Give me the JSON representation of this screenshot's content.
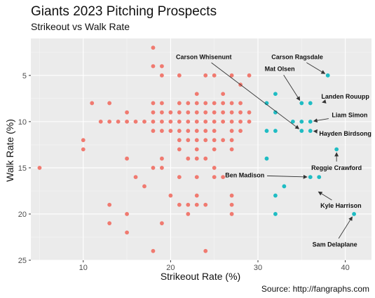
{
  "colors": {
    "panel_bg": "#ebebeb",
    "grid_major": "#ffffff",
    "grid_minor": "#f5f5f5",
    "other_points": "#f07a70",
    "highlight_points": "#1fbcc3",
    "arrow": "#333333"
  },
  "chart_data": {
    "type": "scatter",
    "title": "Giants 2023 Pitching Prospects",
    "subtitle": "Strikeout vs Walk Rate",
    "xlabel": "Strikeout Rate (%)",
    "ylabel": "Walk Rate (%)",
    "caption": "Source: http://fangraphs.com",
    "xlim": [
      4,
      43
    ],
    "ylim": [
      1,
      25
    ],
    "y_reversed": true,
    "grid": true,
    "x_ticks": [
      10,
      20,
      30,
      40
    ],
    "y_ticks": [
      5,
      10,
      15,
      20,
      25
    ],
    "other_points": [
      [
        5,
        15
      ],
      [
        10,
        12
      ],
      [
        10,
        13
      ],
      [
        11,
        8
      ],
      [
        12,
        10
      ],
      [
        13,
        8
      ],
      [
        13,
        10
      ],
      [
        13,
        19
      ],
      [
        13,
        21
      ],
      [
        14,
        10
      ],
      [
        15,
        9
      ],
      [
        15,
        10
      ],
      [
        15,
        14
      ],
      [
        15,
        20
      ],
      [
        15,
        22
      ],
      [
        16,
        10
      ],
      [
        16,
        16
      ],
      [
        17,
        10
      ],
      [
        17,
        17
      ],
      [
        18,
        2
      ],
      [
        18,
        4
      ],
      [
        18,
        8
      ],
      [
        18,
        9
      ],
      [
        18,
        10
      ],
      [
        18,
        11
      ],
      [
        18,
        15
      ],
      [
        18,
        24
      ],
      [
        19,
        4
      ],
      [
        19,
        5
      ],
      [
        19,
        8
      ],
      [
        19,
        9
      ],
      [
        19,
        10
      ],
      [
        19,
        11
      ],
      [
        19,
        14
      ],
      [
        19,
        15
      ],
      [
        19,
        21
      ],
      [
        20,
        9
      ],
      [
        20,
        10
      ],
      [
        20,
        11
      ],
      [
        20,
        18
      ],
      [
        21,
        5
      ],
      [
        21,
        8
      ],
      [
        21,
        9
      ],
      [
        21,
        10
      ],
      [
        21,
        11
      ],
      [
        21,
        12
      ],
      [
        21,
        13
      ],
      [
        21,
        16
      ],
      [
        21,
        19
      ],
      [
        22,
        8
      ],
      [
        22,
        9
      ],
      [
        22,
        10
      ],
      [
        22,
        11
      ],
      [
        22,
        12
      ],
      [
        22,
        14
      ],
      [
        22,
        19
      ],
      [
        22,
        20
      ],
      [
        23,
        7
      ],
      [
        23,
        8
      ],
      [
        23,
        9
      ],
      [
        23,
        10
      ],
      [
        23,
        11
      ],
      [
        23,
        12
      ],
      [
        23,
        13
      ],
      [
        23,
        14
      ],
      [
        23,
        16
      ],
      [
        23,
        18
      ],
      [
        23,
        19
      ],
      [
        24,
        5
      ],
      [
        24,
        8
      ],
      [
        24,
        9
      ],
      [
        24,
        10
      ],
      [
        24,
        11
      ],
      [
        24,
        12
      ],
      [
        24,
        14
      ],
      [
        24,
        19
      ],
      [
        24,
        24
      ],
      [
        25,
        5
      ],
      [
        25,
        8
      ],
      [
        25,
        9
      ],
      [
        25,
        10
      ],
      [
        25,
        11
      ],
      [
        25,
        12
      ],
      [
        25,
        13
      ],
      [
        25,
        15
      ],
      [
        25,
        16
      ],
      [
        26,
        7
      ],
      [
        26,
        8
      ],
      [
        26,
        9
      ],
      [
        26,
        10
      ],
      [
        26,
        12
      ],
      [
        26,
        16
      ],
      [
        27,
        5
      ],
      [
        27,
        8
      ],
      [
        27,
        9
      ],
      [
        27,
        10
      ],
      [
        27,
        11
      ],
      [
        27,
        12
      ],
      [
        27,
        13
      ],
      [
        27,
        18
      ],
      [
        27,
        19
      ],
      [
        27,
        20
      ],
      [
        28,
        6
      ],
      [
        28,
        8
      ],
      [
        28,
        9
      ],
      [
        28,
        10
      ],
      [
        28,
        11
      ],
      [
        29,
        5
      ],
      [
        29,
        9
      ],
      [
        29,
        10
      ]
    ],
    "highlight_points": [
      [
        31,
        8
      ],
      [
        31,
        11
      ],
      [
        31,
        14
      ],
      [
        32,
        7
      ],
      [
        32,
        9
      ],
      [
        32,
        11
      ],
      [
        32,
        18
      ],
      [
        32,
        20
      ],
      [
        33,
        17
      ],
      [
        34,
        10
      ],
      [
        35,
        8
      ],
      [
        35,
        10
      ],
      [
        35,
        11
      ],
      [
        36,
        8
      ],
      [
        36,
        10
      ],
      [
        36,
        11
      ],
      [
        36,
        16
      ],
      [
        37,
        16
      ],
      [
        38,
        5
      ],
      [
        39,
        13
      ],
      [
        41,
        20
      ]
    ],
    "annotations": [
      {
        "label": "Carson Whisenunt",
        "point": [
          35,
          11
        ],
        "text": [
          23.8,
          3
        ]
      },
      {
        "label": "Carson Ragsdale",
        "point": [
          38,
          5
        ],
        "text": [
          34.5,
          3
        ]
      },
      {
        "label": "Mat Olsen",
        "point": [
          35,
          8
        ],
        "text": [
          32.5,
          4.3
        ]
      },
      {
        "label": "Landen Rouupp",
        "point": [
          37,
          8
        ],
        "text": [
          40,
          7.3
        ]
      },
      {
        "label": "Liam Simon",
        "point": [
          36,
          10
        ],
        "text": [
          40.5,
          9.3
        ]
      },
      {
        "label": "Hayden Birdsong",
        "point": [
          36,
          11
        ],
        "text": [
          40,
          11.3
        ]
      },
      {
        "label": "Reggie Crawford",
        "point": [
          39,
          13
        ],
        "text": [
          39,
          15
        ]
      },
      {
        "label": "Ben Madison",
        "point": [
          36,
          16
        ],
        "text": [
          28.5,
          15.8
        ]
      },
      {
        "label": "Kyle Harrison",
        "point": [
          36.6,
          17.4
        ],
        "text": [
          39.5,
          19.1
        ]
      },
      {
        "label": "Sam Delaplane",
        "point": [
          41,
          20
        ],
        "text": [
          38.8,
          23.3
        ]
      }
    ]
  }
}
